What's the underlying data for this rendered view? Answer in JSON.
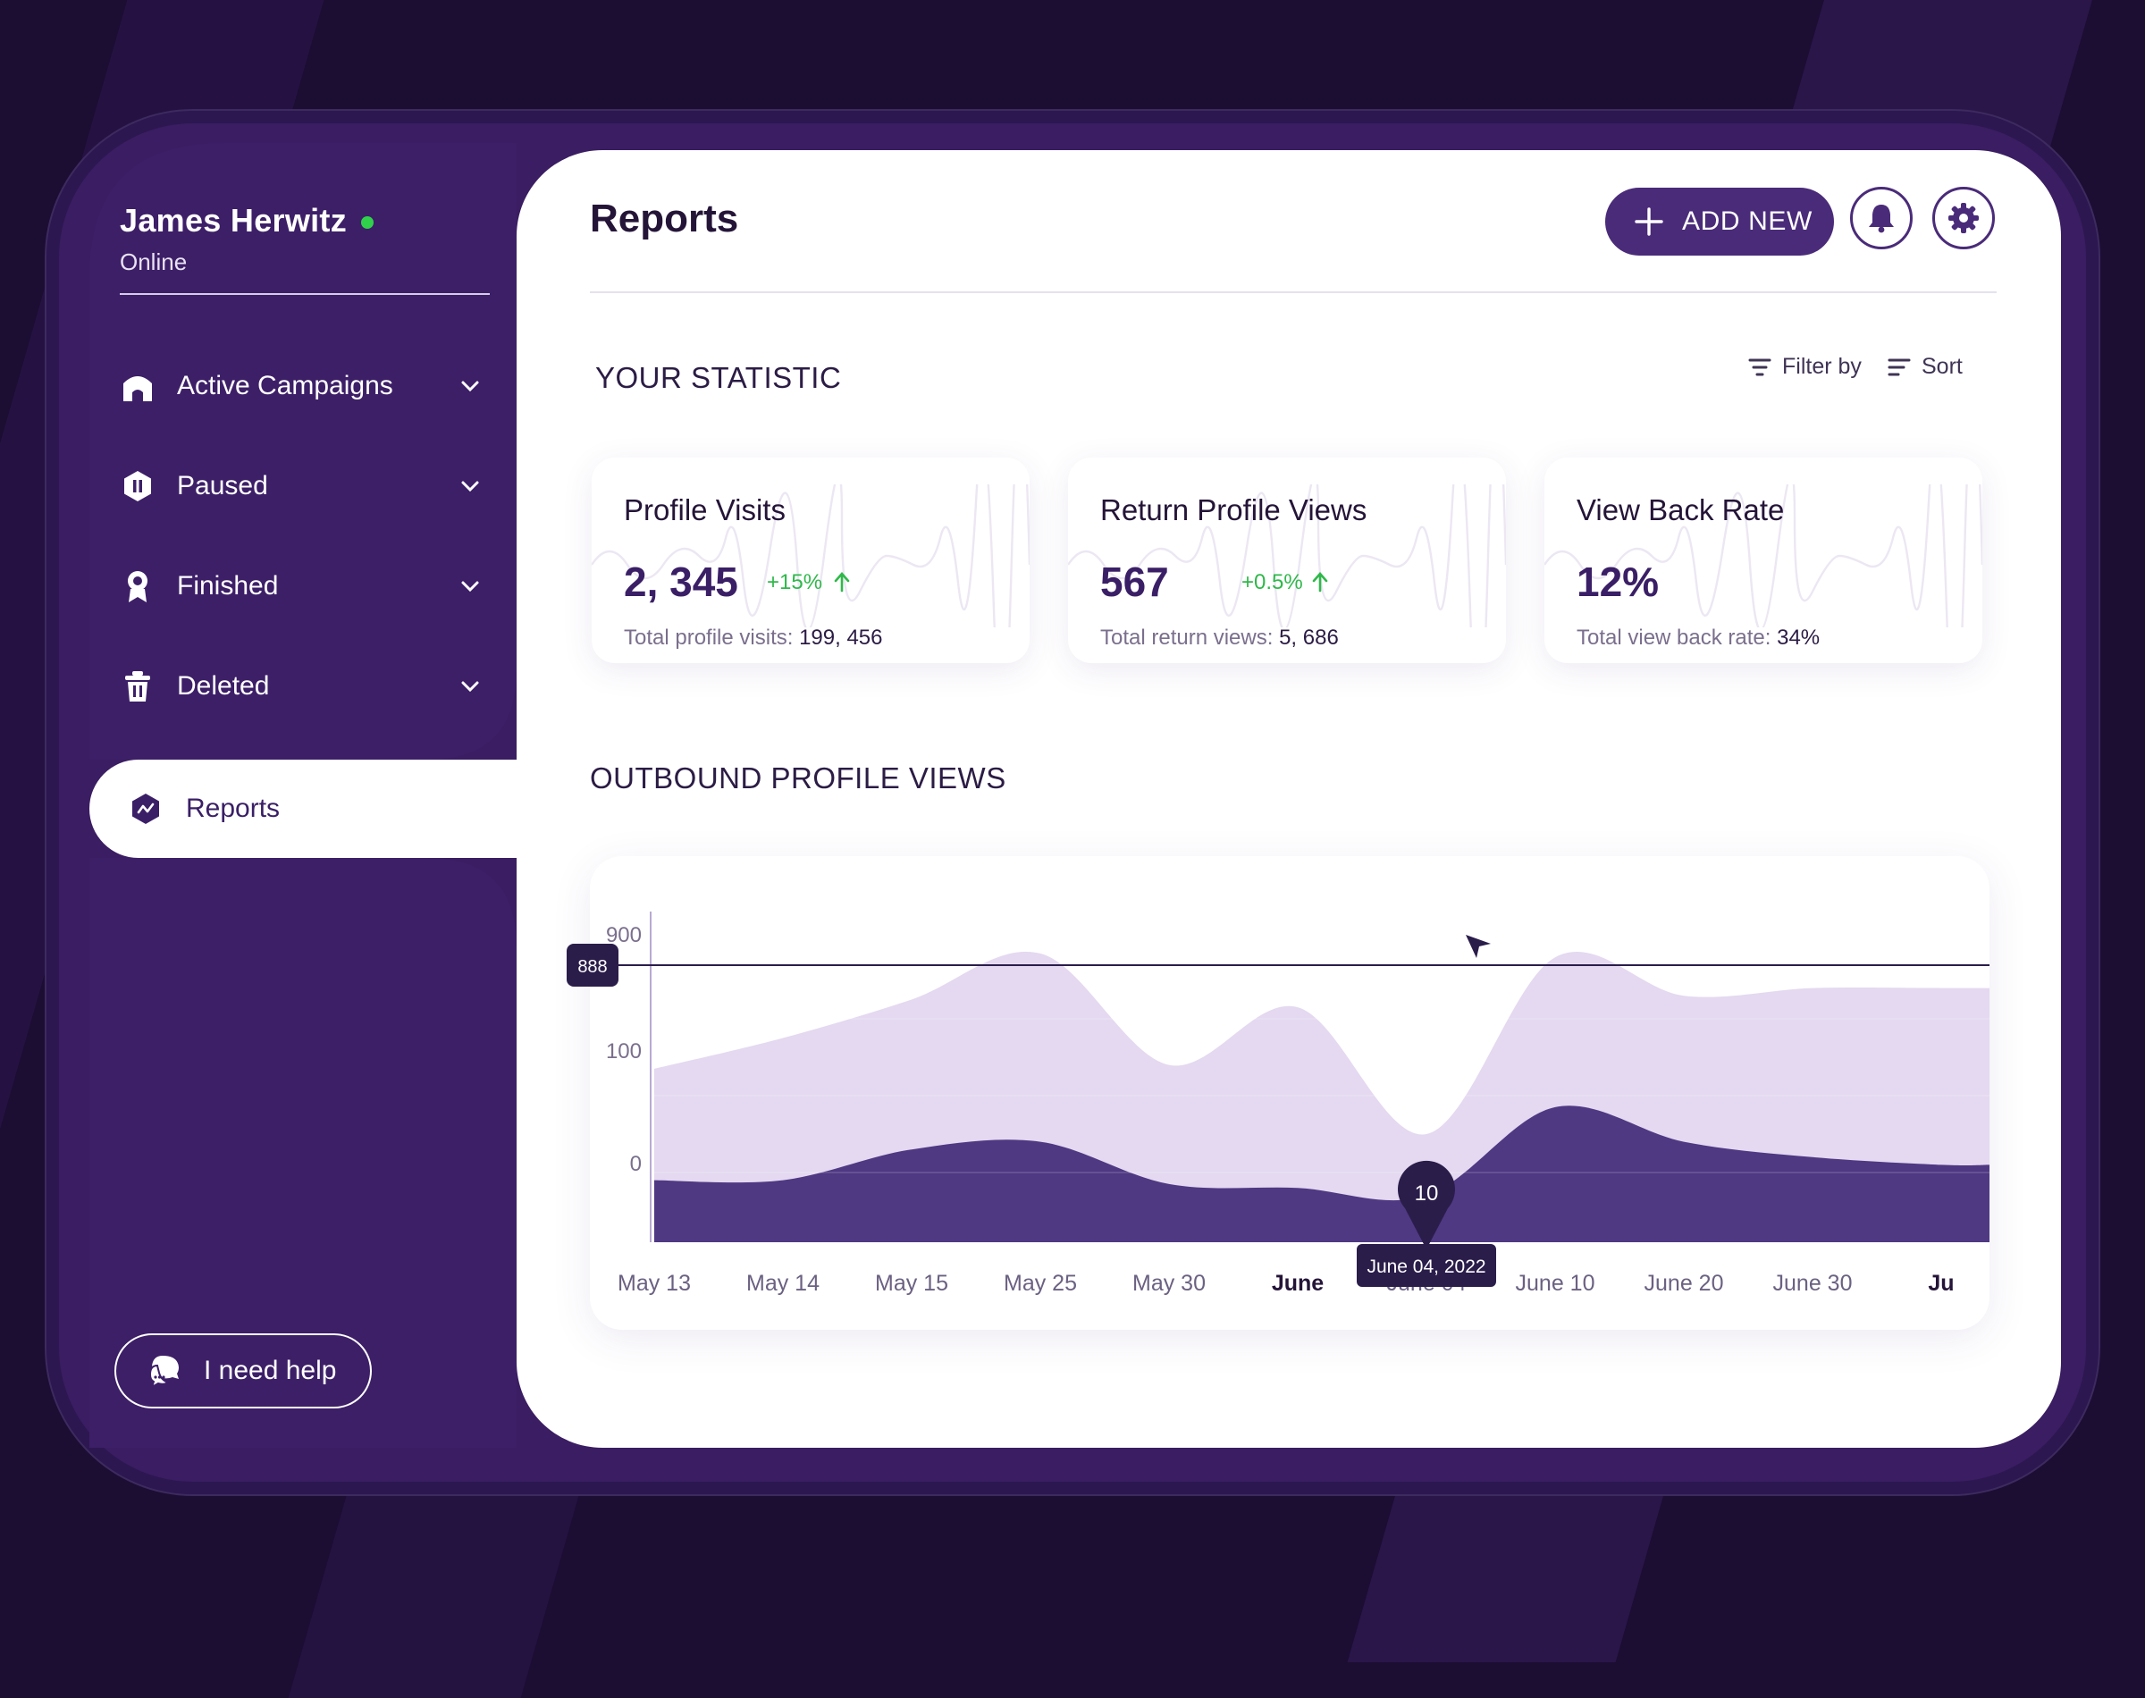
{
  "user": {
    "name": "James Herwitz",
    "status": "Online"
  },
  "sidebar": {
    "items": [
      {
        "label": "Active Campaigns",
        "icon": "campaign-icon"
      },
      {
        "label": "Paused",
        "icon": "pause-icon"
      },
      {
        "label": "Finished",
        "icon": "award-icon"
      },
      {
        "label": "Deleted",
        "icon": "trash-icon"
      }
    ],
    "active": {
      "label": "Reports",
      "icon": "reports-icon"
    },
    "help_label": "I need help"
  },
  "header": {
    "title": "Reports",
    "add_label": "ADD NEW"
  },
  "statistic": {
    "title": "YOUR STATISTIC",
    "filter_label": "Filter by",
    "sort_label": "Sort",
    "cards": [
      {
        "title": "Profile Visits",
        "value": "2, 345",
        "change": "+15%",
        "sub_label": "Total profile visits:",
        "sub_value": "199, 456"
      },
      {
        "title": "Return Profile Views",
        "value": "567",
        "change": "+0.5%",
        "sub_label": "Total return views:",
        "sub_value": "5, 686"
      },
      {
        "title": "View Back Rate",
        "value": "12%",
        "change": "",
        "sub_label": "Total view back rate:",
        "sub_value": "34%"
      }
    ]
  },
  "chart": {
    "title": "OUTBOUND PROFILE VIEWS"
  },
  "colors": {
    "accent": "#4a2b79",
    "sidebar": "#3a1d62",
    "positive": "#2fb84a",
    "online": "#2fd24a",
    "area_light": "#e4d9f0",
    "area_dark": "#4f3983"
  },
  "chart_data": {
    "type": "area",
    "title": "OUTBOUND PROFILE VIEWS",
    "categories": [
      "May 13",
      "May 14",
      "May 15",
      "May 25",
      "May 30",
      "June",
      "June 04",
      "June 10",
      "June 20",
      "June 30",
      "Ju"
    ],
    "bold_categories": [
      "June",
      "Ju"
    ],
    "y_ticks": [
      "0",
      "100",
      "900"
    ],
    "series": [
      {
        "values": [
          135,
          175,
          225,
          285,
          140,
          215,
          50,
          280,
          230,
          240,
          240
        ]
      },
      {
        "values": [
          -10,
          -10,
          30,
          40,
          -15,
          -20,
          -30,
          85,
          40,
          20,
          10
        ]
      }
    ],
    "reference_line": {
      "label": "888"
    },
    "highlight": {
      "category": "June 04",
      "value": "10",
      "date_label": "June 04, 2022"
    }
  }
}
